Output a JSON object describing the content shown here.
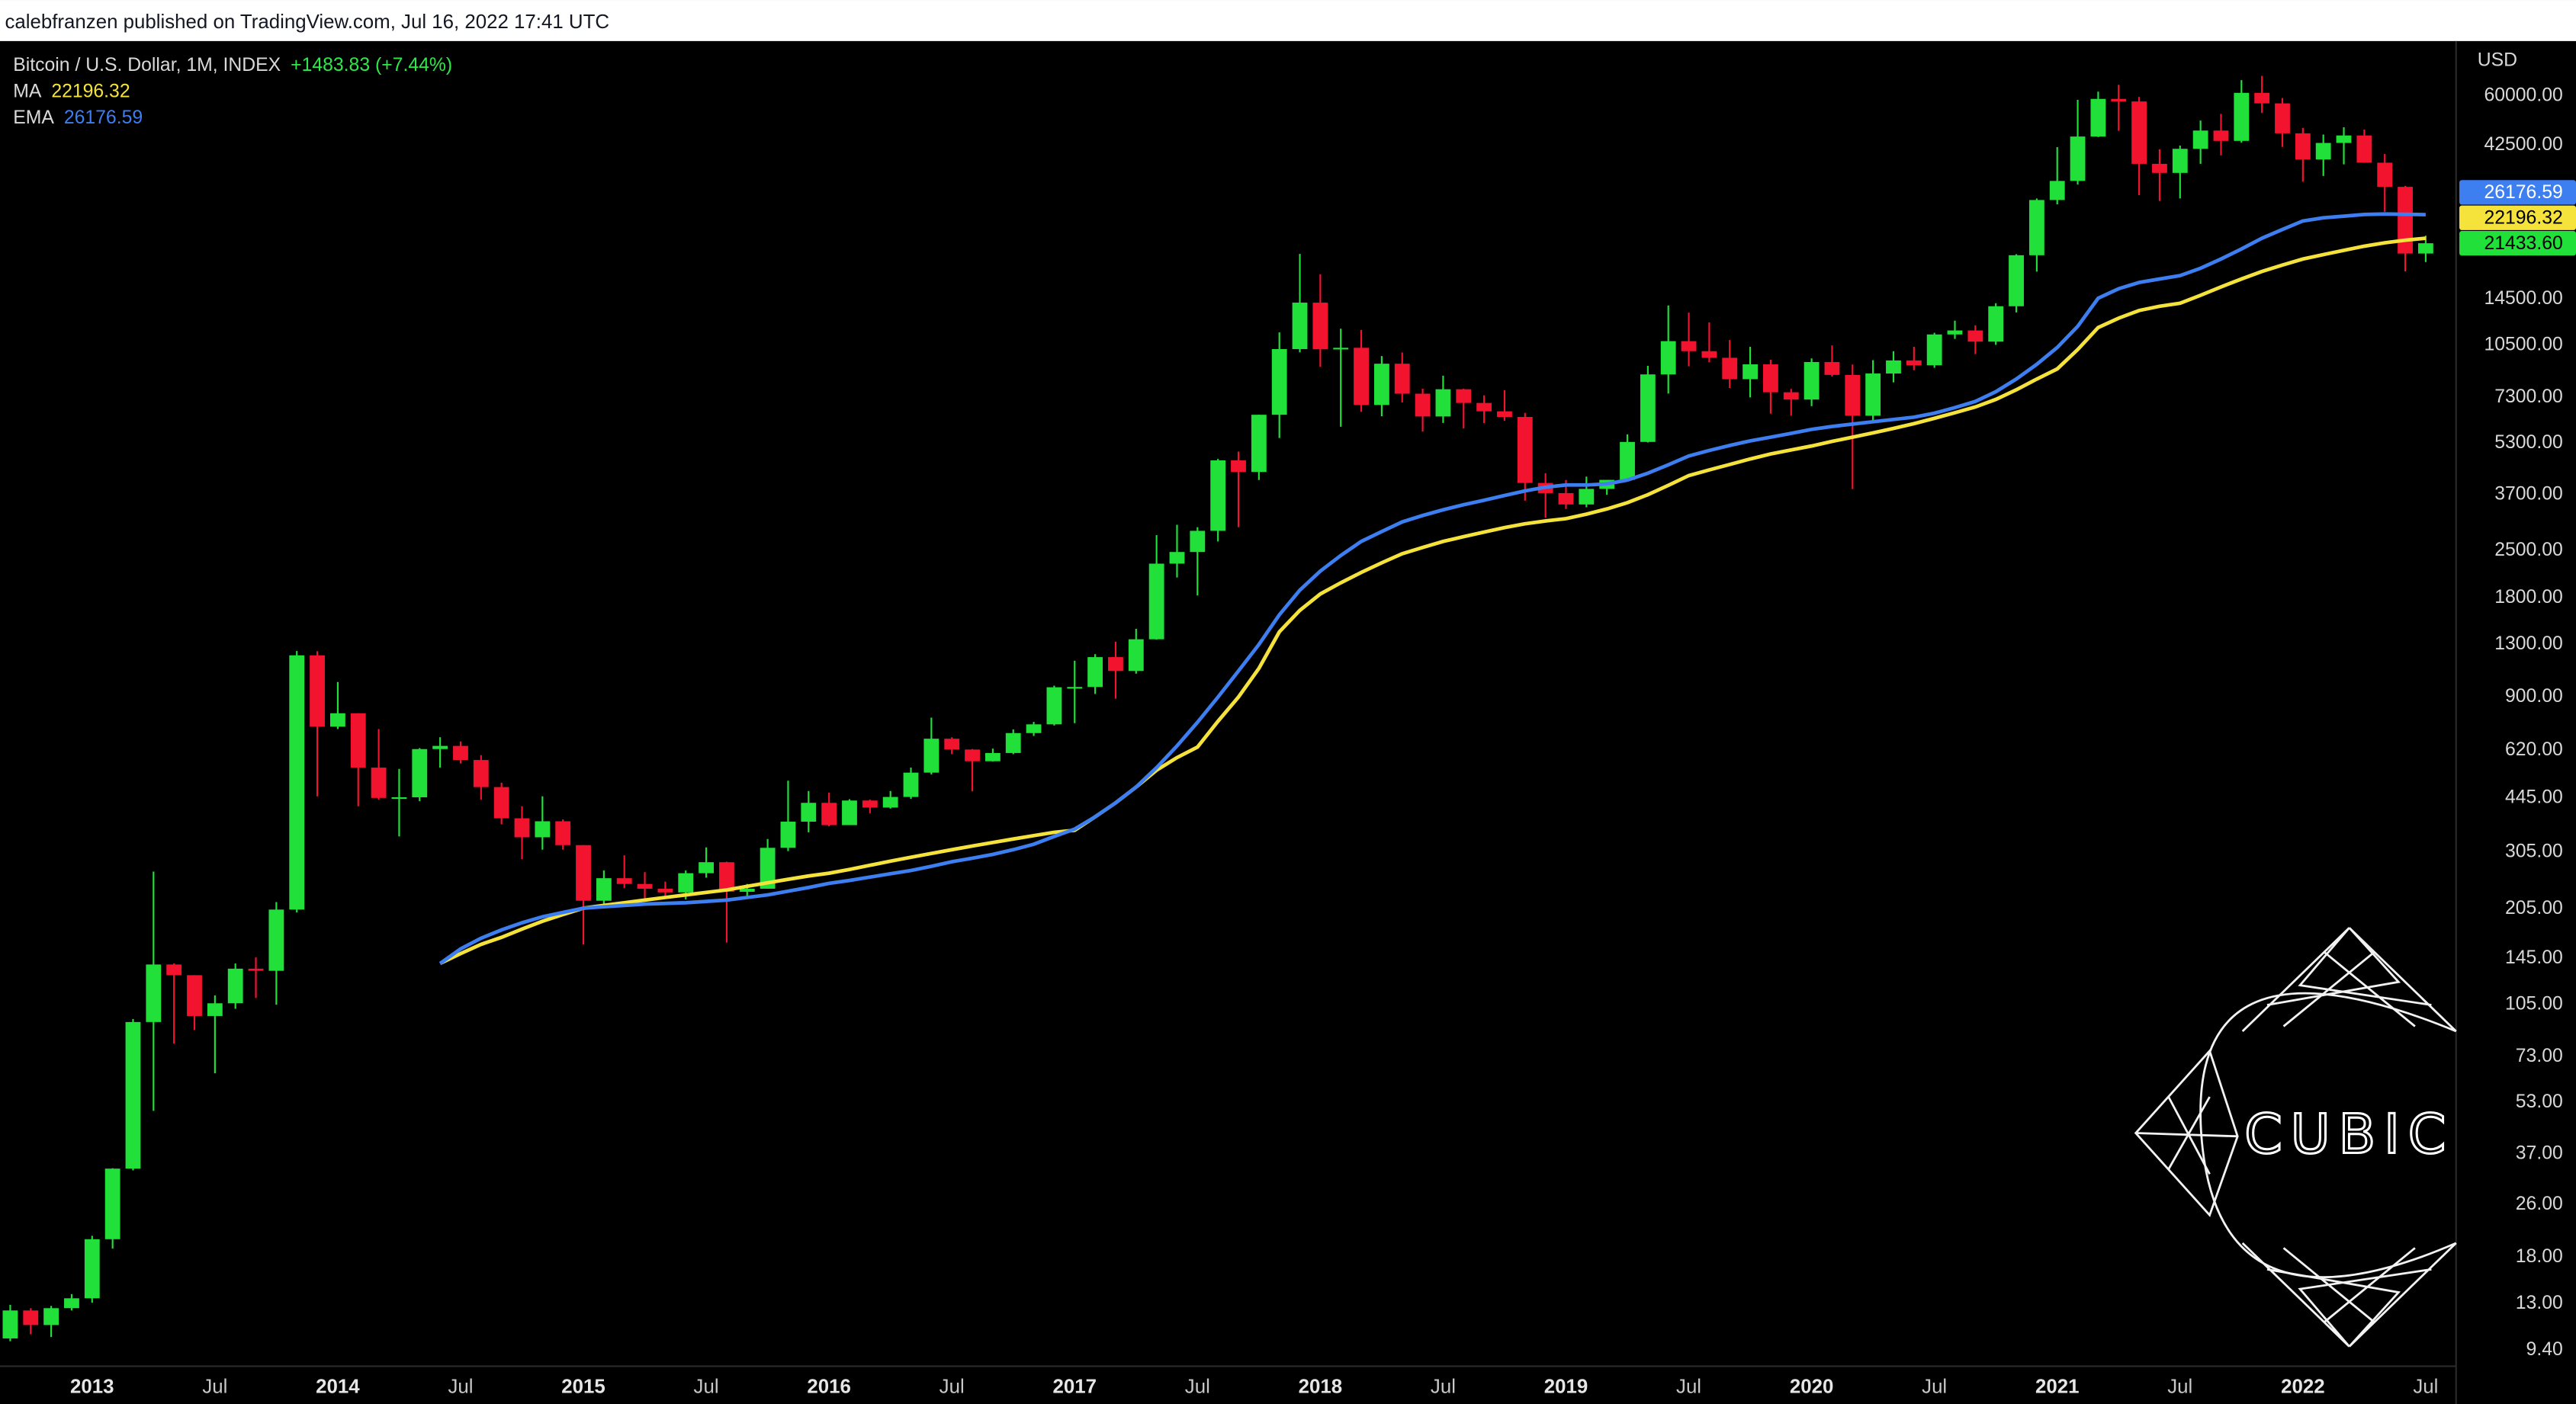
{
  "header": "calebfranzen published on TradingView.com, Jul 16, 2022 17:41 UTC",
  "chart_data": {
    "type": "candlestick",
    "title": "Bitcoin / U.S. Dollar, 1M, INDEX",
    "change": "+1483.83 (+7.44%)",
    "currency": "USD",
    "watermark": "CUBIC",
    "log_y": true,
    "grid": false,
    "up_color": "#22e03a",
    "down_color": "#f2132f",
    "x": [
      "2012-09",
      "2012-10",
      "2012-11",
      "2012-12",
      "2013-01",
      "2013-02",
      "2013-03",
      "2013-04",
      "2013-05",
      "2013-06",
      "2013-07",
      "2013-08",
      "2013-09",
      "2013-10",
      "2013-11",
      "2013-12",
      "2014-01",
      "2014-02",
      "2014-03",
      "2014-04",
      "2014-05",
      "2014-06",
      "2014-07",
      "2014-08",
      "2014-09",
      "2014-10",
      "2014-11",
      "2014-12",
      "2015-01",
      "2015-02",
      "2015-03",
      "2015-04",
      "2015-05",
      "2015-06",
      "2015-07",
      "2015-08",
      "2015-09",
      "2015-10",
      "2015-11",
      "2015-12",
      "2016-01",
      "2016-02",
      "2016-03",
      "2016-04",
      "2016-05",
      "2016-06",
      "2016-07",
      "2016-08",
      "2016-09",
      "2016-10",
      "2016-11",
      "2016-12",
      "2017-01",
      "2017-02",
      "2017-03",
      "2017-04",
      "2017-05",
      "2017-06",
      "2017-07",
      "2017-08",
      "2017-09",
      "2017-10",
      "2017-11",
      "2017-12",
      "2018-01",
      "2018-02",
      "2018-03",
      "2018-04",
      "2018-05",
      "2018-06",
      "2018-07",
      "2018-08",
      "2018-09",
      "2018-10",
      "2018-11",
      "2018-12",
      "2019-01",
      "2019-02",
      "2019-03",
      "2019-04",
      "2019-05",
      "2019-06",
      "2019-07",
      "2019-08",
      "2019-09",
      "2019-10",
      "2019-11",
      "2019-12",
      "2020-01",
      "2020-02",
      "2020-03",
      "2020-04",
      "2020-05",
      "2020-06",
      "2020-07",
      "2020-08",
      "2020-09",
      "2020-10",
      "2020-11",
      "2020-12",
      "2021-01",
      "2021-02",
      "2021-03",
      "2021-04",
      "2021-05",
      "2021-06",
      "2021-07",
      "2021-08",
      "2021-09",
      "2021-10",
      "2021-11",
      "2021-12",
      "2022-01",
      "2022-02",
      "2022-03",
      "2022-04",
      "2022-05",
      "2022-06",
      "2022-07"
    ],
    "open": [
      10.2,
      12.4,
      11.2,
      12.6,
      13.5,
      20.4,
      33.4,
      93,
      139,
      129,
      97,
      106,
      135,
      133,
      204,
      1205,
      732,
      804,
      550,
      445,
      447,
      626,
      640,
      580,
      480,
      386,
      338,
      378,
      320,
      217,
      254,
      244,
      236,
      230,
      263,
      284,
      231,
      236,
      314,
      377,
      430,
      368,
      437,
      416,
      448,
      531,
      673,
      624,
      575,
      609,
      700,
      744,
      964,
      966,
      1190,
      1080,
      1348,
      2286,
      2480,
      2875,
      4703,
      4338,
      6468,
      10233,
      14156,
      10221,
      10326,
      6926,
      9240,
      7494,
      6391,
      7730,
      7025,
      6626,
      6371,
      4017,
      3742,
      3457,
      3854,
      4105,
      5350,
      8574,
      10817,
      10085,
      9630,
      8293,
      9199,
      7569,
      7193,
      9350,
      8544,
      6424,
      8629,
      9454,
      9138,
      11335,
      11655,
      10779,
      13805,
      19713,
      28990,
      33125,
      45170,
      58760,
      57720,
      37330,
      35040,
      41460,
      47100,
      43820,
      61300,
      56950,
      46200,
      38480,
      43190,
      45510,
      37630,
      31790,
      19949.77
    ],
    "high": [
      12.9,
      12.6,
      12.8,
      13.9,
      20.9,
      33.5,
      95,
      266,
      140,
      129,
      112,
      140,
      146,
      215,
      1242,
      1240,
      1000,
      804,
      720,
      545,
      630,
      680,
      660,
      600,
      495,
      420,
      450,
      383,
      320,
      268,
      298,
      265,
      248,
      268,
      315,
      285,
      244,
      334,
      502,
      467,
      462,
      441,
      440,
      467,
      550,
      780,
      680,
      626,
      628,
      718,
      757,
      975,
      1160,
      1215,
      1325,
      1450,
      2790,
      3000,
      2950,
      4750,
      5000,
      6470,
      11500,
      19900,
      17250,
      11800,
      11700,
      9750,
      9990,
      7760,
      8500,
      7760,
      7410,
      7680,
      6550,
      4300,
      4100,
      4200,
      4100,
      5640,
      9100,
      13880,
      13200,
      12330,
      10900,
      10400,
      9500,
      7750,
      9590,
      10500,
      9190,
      9470,
      10080,
      10400,
      11470,
      12480,
      12080,
      14100,
      19860,
      29300,
      41950,
      58350,
      61800,
      64850,
      59600,
      41330,
      42400,
      50500,
      52900,
      67000,
      69000,
      59100,
      48000,
      45800,
      48200,
      47450,
      40000,
      31990,
      22600
    ],
    "low": [
      10.0,
      10.5,
      10.3,
      12.4,
      13.1,
      19.1,
      33,
      50,
      80,
      88,
      65,
      102,
      110,
      105,
      200,
      450,
      720,
      420,
      440,
      340,
      435,
      550,
      566,
      440,
      370,
      290,
      310,
      310,
      160,
      212,
      237,
      216,
      224,
      219,
      255,
      162,
      224,
      236,
      307,
      350,
      365,
      368,
      400,
      413,
      442,
      524,
      604,
      466,
      574,
      604,
      686,
      738,
      750,
      920,
      890,
      1060,
      1345,
      2075,
      1830,
      2670,
      2950,
      4100,
      5500,
      10000,
      9050,
      5950,
      6600,
      6400,
      7050,
      5750,
      6110,
      5880,
      6100,
      6200,
      3550,
      3150,
      3350,
      3390,
      3700,
      4100,
      5330,
      7500,
      9070,
      9330,
      7800,
      7300,
      6520,
      6430,
      6870,
      8450,
      3850,
      6150,
      8110,
      8830,
      8980,
      10990,
      9880,
      10540,
      13220,
      17580,
      28130,
      32300,
      45000,
      47000,
      30000,
      28800,
      29300,
      37330,
      39600,
      43300,
      53250,
      42000,
      32950,
      34300,
      37200,
      37700,
      26700,
      17600,
      18800
    ],
    "close": [
      12.4,
      11.2,
      12.6,
      13.5,
      20.4,
      33.4,
      93,
      139,
      129,
      97,
      106,
      135,
      133,
      204,
      1205,
      732,
      804,
      550,
      445,
      447,
      626,
      640,
      580,
      480,
      386,
      338,
      378,
      320,
      217,
      254,
      244,
      236,
      230,
      263,
      284,
      231,
      236,
      314,
      377,
      430,
      368,
      437,
      416,
      448,
      531,
      673,
      624,
      575,
      609,
      700,
      744,
      964,
      966,
      1190,
      1080,
      1348,
      2286,
      2480,
      2875,
      4703,
      4338,
      6468,
      10233,
      14156,
      10221,
      10326,
      6926,
      9240,
      7494,
      6391,
      7730,
      7025,
      6626,
      6371,
      4017,
      3742,
      3457,
      3854,
      4105,
      5350,
      8574,
      10817,
      10085,
      9630,
      8293,
      9199,
      7569,
      7193,
      9350,
      8544,
      6424,
      8629,
      9454,
      9138,
      11335,
      11655,
      10779,
      13805,
      19713,
      28990,
      33125,
      45170,
      58760,
      57720,
      37330,
      35040,
      41460,
      47100,
      43820,
      61300,
      56950,
      46200,
      38480,
      43190,
      45510,
      37630,
      31790,
      19949.77,
      21433.6
    ],
    "close_label": {
      "value": 21433.6,
      "label": "21433.60"
    },
    "series": [
      {
        "name": "MA",
        "color": "#f5e33b",
        "values": [
          null,
          null,
          null,
          null,
          null,
          null,
          null,
          null,
          null,
          null,
          null,
          null,
          null,
          null,
          null,
          null,
          null,
          null,
          null,
          null,
          null,
          140,
          150,
          160,
          168,
          178,
          188,
          197,
          206,
          210,
          214,
          218,
          222,
          226,
          230,
          234,
          240,
          246,
          252,
          258,
          263,
          270,
          278,
          286,
          294,
          302,
          310,
          318,
          326,
          334,
          342,
          350,
          355,
          390,
          430,
          480,
          540,
          590,
          635,
          760,
          900,
          1100,
          1420,
          1650,
          1850,
          2000,
          2150,
          2300,
          2450,
          2560,
          2670,
          2760,
          2850,
          2940,
          3020,
          3080,
          3130,
          3230,
          3350,
          3500,
          3700,
          3950,
          4230,
          4400,
          4570,
          4750,
          4920,
          5060,
          5200,
          5370,
          5530,
          5700,
          5880,
          6080,
          6310,
          6560,
          6830,
          7200,
          7700,
          8300,
          8910,
          10200,
          11900,
          12700,
          13400,
          13800,
          14100,
          14900,
          15800,
          16700,
          17600,
          18400,
          19200,
          19800,
          20400,
          21000,
          21500,
          21900,
          22196.32
        ]
      },
      {
        "name": "EMA",
        "color": "#3d7ef0",
        "values": [
          null,
          null,
          null,
          null,
          null,
          null,
          null,
          null,
          null,
          null,
          null,
          null,
          null,
          null,
          null,
          null,
          null,
          null,
          null,
          null,
          null,
          140,
          155,
          167,
          177,
          186,
          194,
          200,
          206,
          208,
          210,
          212,
          213,
          214,
          216,
          218,
          222,
          226,
          232,
          238,
          245,
          250,
          256,
          262,
          268,
          276,
          285,
          292,
          300,
          310,
          322,
          340,
          358,
          390,
          430,
          480,
          550,
          640,
          755,
          900,
          1080,
          1300,
          1600,
          1900,
          2170,
          2420,
          2670,
          2860,
          3060,
          3200,
          3330,
          3450,
          3560,
          3680,
          3800,
          3900,
          3960,
          3960,
          3990,
          4100,
          4300,
          4560,
          4850,
          5040,
          5220,
          5390,
          5530,
          5680,
          5840,
          5960,
          6060,
          6160,
          6260,
          6360,
          6540,
          6800,
          7100,
          7600,
          8300,
          9200,
          10350,
          12000,
          14600,
          15600,
          16300,
          16700,
          17100,
          18000,
          19200,
          20600,
          22200,
          23600,
          25050,
          25600,
          25900,
          26200,
          26300,
          26250,
          26176.59
        ]
      }
    ],
    "ylim": [
      8.4,
      88000
    ],
    "yticks": [
      {
        "value": 9.4,
        "label": "9.40"
      },
      {
        "value": 13,
        "label": "13.00"
      },
      {
        "value": 18,
        "label": "18.00"
      },
      {
        "value": 26,
        "label": "26.00"
      },
      {
        "value": 37,
        "label": "37.00"
      },
      {
        "value": 53,
        "label": "53.00"
      },
      {
        "value": 73,
        "label": "73.00"
      },
      {
        "value": 105,
        "label": "105.00"
      },
      {
        "value": 145,
        "label": "145.00"
      },
      {
        "value": 205,
        "label": "205.00"
      },
      {
        "value": 305,
        "label": "305.00"
      },
      {
        "value": 445,
        "label": "445.00"
      },
      {
        "value": 620,
        "label": "620.00"
      },
      {
        "value": 900,
        "label": "900.00"
      },
      {
        "value": 1300,
        "label": "1300.00"
      },
      {
        "value": 1800,
        "label": "1800.00"
      },
      {
        "value": 2500,
        "label": "2500.00"
      },
      {
        "value": 3700,
        "label": "3700.00"
      },
      {
        "value": 5300,
        "label": "5300.00"
      },
      {
        "value": 7300,
        "label": "7300.00"
      },
      {
        "value": 10500,
        "label": "10500.00"
      },
      {
        "value": 14500,
        "label": "14500.00"
      },
      {
        "value": 42500,
        "label": "42500.00"
      },
      {
        "value": 60000,
        "label": "60000.00"
      }
    ],
    "xticks": [
      {
        "value": "2013-01",
        "label": "2013"
      },
      {
        "value": "2013-07",
        "label": "Jul"
      },
      {
        "value": "2014-01",
        "label": "2014"
      },
      {
        "value": "2014-07",
        "label": "Jul"
      },
      {
        "value": "2015-01",
        "label": "2015"
      },
      {
        "value": "2015-07",
        "label": "Jul"
      },
      {
        "value": "2016-01",
        "label": "2016"
      },
      {
        "value": "2016-07",
        "label": "Jul"
      },
      {
        "value": "2017-01",
        "label": "2017"
      },
      {
        "value": "2017-07",
        "label": "Jul"
      },
      {
        "value": "2018-01",
        "label": "2018"
      },
      {
        "value": "2018-07",
        "label": "Jul"
      },
      {
        "value": "2019-01",
        "label": "2019"
      },
      {
        "value": "2019-07",
        "label": "Jul"
      },
      {
        "value": "2020-01",
        "label": "2020"
      },
      {
        "value": "2020-07",
        "label": "Jul"
      },
      {
        "value": "2021-01",
        "label": "2021"
      },
      {
        "value": "2021-07",
        "label": "Jul"
      },
      {
        "value": "2022-01",
        "label": "2022"
      },
      {
        "value": "2022-07",
        "label": "Jul"
      }
    ]
  }
}
